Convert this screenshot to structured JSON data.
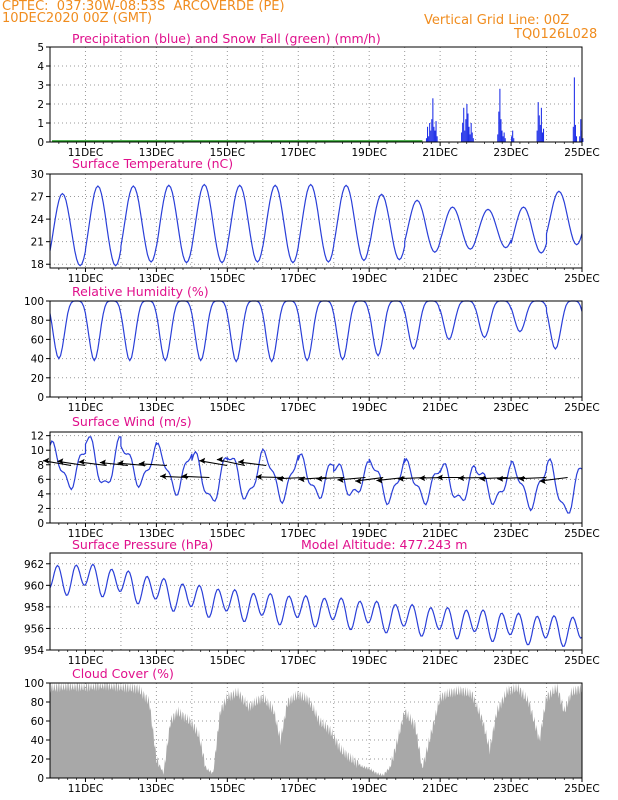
{
  "header": {
    "line1": "CPTEC:  037:30W-08:53S  ARCOVERDE (PE)",
    "line2": "10DEC2020 00Z (GMT)",
    "grid_note": "Vertical Grid Line: 00Z",
    "code": "TQ0126L028"
  },
  "colors": {
    "precip": "#1f2fe8",
    "snow": "#1a9a1a",
    "line": "#2a3fd8",
    "cloud": "#a8a8a8",
    "title": "#e0108c",
    "header": "#f08c1e"
  },
  "chart_data": [
    {
      "id": "precip",
      "type": "bar",
      "title": "Precipitation (blue) and Snow Fall (green) (mm/h)",
      "ylim": [
        0,
        5
      ],
      "yticks": [
        0,
        1,
        2,
        3,
        4,
        5
      ],
      "x_start_day": 10,
      "x_end_day": 25,
      "xticks": [
        "11DEC",
        "13DEC",
        "15DEC",
        "17DEC",
        "19DEC",
        "21DEC",
        "23DEC",
        "25DEC"
      ],
      "series": [
        {
          "values_daystart": 20.6,
          "step_days": 0.03,
          "values": [
            0.2,
            0.8,
            0.3,
            1.0,
            0.6,
            1.2,
            2.3,
            0.8,
            0.6,
            1.1,
            0.3,
            0.0,
            0.0,
            0.0,
            0.0,
            0.0,
            0.0,
            0.0,
            0.0,
            0.0,
            0.0,
            0.0,
            0.0,
            0.0,
            0.0,
            0.0,
            0.0,
            0.0,
            0.0,
            0.0,
            0.0,
            0.0,
            0.0,
            0.5,
            1.0,
            1.8,
            0.6,
            1.2,
            2.0,
            1.5,
            0.8,
            0.4,
            1.0,
            0.5,
            0.2,
            0.0,
            0.0,
            0.0,
            0.0,
            0.0,
            0.0,
            0.0,
            0.0,
            0.0,
            0.0,
            0.0,
            0.0,
            0.0,
            0.0,
            0.0,
            0.0,
            0.0,
            0.0,
            0.0,
            0.0,
            0.0,
            0.0,
            0.4,
            1.6,
            2.8,
            1.2,
            0.6,
            0.3,
            0.5,
            0.2,
            0.0,
            0.0,
            0.0,
            0.0,
            0.0,
            0.3,
            0.6,
            0.2,
            0.0,
            0.0,
            0.0,
            0.0,
            0.0,
            0.0,
            0.0,
            0.0,
            0.0,
            0.0,
            0.0,
            0.0,
            0.0,
            0.0,
            0.0,
            0.0,
            0.0,
            0.0,
            0.0,
            0.0,
            0.0,
            0.6,
            2.1,
            1.4,
            0.9,
            1.8,
            0.5,
            0.7,
            0.0,
            0.0,
            0.0,
            0.0,
            0.0,
            0.0,
            0.0,
            0.0,
            0.0,
            0.0,
            0.0,
            0.0,
            0.0,
            0.0,
            0.0,
            0.0,
            0.0,
            0.0,
            0.0,
            0.0,
            0.0,
            0.0,
            0.0,
            0.0,
            0.0,
            0.0,
            0.0,
            0.8,
            3.4,
            0.9,
            0.3,
            0.0,
            0.0,
            0.3,
            1.2,
            0.6,
            0.2
          ]
        }
      ]
    },
    {
      "id": "temp",
      "type": "line",
      "title": "Surface Temperature (nC)",
      "ylim": [
        17.5,
        30
      ],
      "yticks": [
        18,
        21,
        24,
        27,
        30
      ],
      "xticks": [
        "11DEC",
        "13DEC",
        "15DEC",
        "17DEC",
        "19DEC",
        "21DEC",
        "23DEC",
        "25DEC"
      ],
      "daily_min": [
        17.8,
        17.8,
        18.3,
        18.2,
        18.2,
        18.3,
        18.2,
        18.3,
        18.5,
        18.6,
        19.6,
        20.0,
        20.2,
        19.5,
        20.6
      ],
      "daily_max": [
        27.4,
        28.4,
        28.4,
        28.5,
        28.6,
        28.5,
        28.5,
        28.6,
        28.5,
        27.3,
        26.5,
        25.6,
        25.3,
        25.6,
        27.7
      ],
      "start_value": 21.8,
      "end_value": 21.9
    },
    {
      "id": "rh",
      "type": "line",
      "title": "Relative Humidity (%)",
      "ylim": [
        0,
        100
      ],
      "yticks": [
        0,
        20,
        40,
        60,
        80,
        100
      ],
      "xticks": [
        "11DEC",
        "13DEC",
        "15DEC",
        "17DEC",
        "19DEC",
        "21DEC",
        "23DEC",
        "25DEC"
      ],
      "daily_min": [
        40,
        38,
        38,
        38,
        38,
        37,
        37,
        38,
        39,
        43,
        50,
        60,
        62,
        68,
        50
      ],
      "daily_max": [
        100,
        100,
        100,
        100,
        100,
        100,
        100,
        100,
        100,
        100,
        100,
        100,
        100,
        100,
        100
      ]
    },
    {
      "id": "wind",
      "type": "line",
      "title": "Surface Wind (m/s)",
      "ylim": [
        0,
        12.5
      ],
      "yticks": [
        0,
        2,
        4,
        6,
        8,
        10,
        12
      ],
      "xticks": [
        "11DEC",
        "13DEC",
        "15DEC",
        "17DEC",
        "19DEC",
        "21DEC",
        "23DEC",
        "25DEC"
      ],
      "daily_max": [
        10.5,
        11.8,
        10.5,
        10.2,
        9.3,
        9.5,
        9.5,
        8.8,
        8.0,
        8.5,
        8.0,
        7.8,
        7.5,
        7.8,
        8.2
      ],
      "daily_min": [
        5.2,
        5.0,
        5.5,
        4.5,
        3.0,
        3.5,
        3.5,
        3.8,
        3.8,
        3.2,
        3.2,
        3.0,
        3.0,
        2.5,
        1.5
      ],
      "arrows": [
        {
          "day": 10.2,
          "dir": 130
        },
        {
          "day": 10.6,
          "dir": 125
        },
        {
          "day": 11.2,
          "dir": 120
        },
        {
          "day": 11.8,
          "dir": 115
        },
        {
          "day": 12.3,
          "dir": 110
        },
        {
          "day": 12.9,
          "dir": 105
        },
        {
          "day": 13.5,
          "dir": 100
        },
        {
          "day": 14.1,
          "dir": 100
        },
        {
          "day": 14.6,
          "dir": 130
        },
        {
          "day": 15.1,
          "dir": 140
        },
        {
          "day": 15.7,
          "dir": 120
        },
        {
          "day": 16.2,
          "dir": 95
        },
        {
          "day": 16.8,
          "dir": 80
        },
        {
          "day": 17.4,
          "dir": 75
        },
        {
          "day": 17.9,
          "dir": 80
        },
        {
          "day": 18.5,
          "dir": 70
        },
        {
          "day": 19.0,
          "dir": 60
        },
        {
          "day": 19.6,
          "dir": 65
        },
        {
          "day": 20.2,
          "dir": 80
        },
        {
          "day": 20.8,
          "dir": 85
        },
        {
          "day": 21.3,
          "dir": 90
        },
        {
          "day": 21.9,
          "dir": 85
        },
        {
          "day": 22.5,
          "dir": 80
        },
        {
          "day": 23.0,
          "dir": 80
        },
        {
          "day": 23.6,
          "dir": 80
        },
        {
          "day": 24.2,
          "dir": 60
        }
      ]
    },
    {
      "id": "pres",
      "type": "line",
      "title": "Surface Pressure (hPa)",
      "subtitle": "Model Altitude: 477.243 m",
      "ylim": [
        954,
        963
      ],
      "yticks": [
        954,
        956,
        958,
        960,
        962
      ],
      "xticks": [
        "11DEC",
        "13DEC",
        "15DEC",
        "17DEC",
        "19DEC",
        "21DEC",
        "23DEC",
        "25DEC"
      ],
      "trend": [
        960.5,
        960.8,
        960.2,
        959.5,
        958.8,
        958.4,
        958.0,
        957.8,
        957.6,
        957.3,
        957.0,
        956.7,
        956.5,
        956.2,
        955.9
      ],
      "amplitude": 1.6
    },
    {
      "id": "cloud",
      "type": "area",
      "title": "Cloud Cover (%)",
      "ylim": [
        0,
        100
      ],
      "yticks": [
        0,
        20,
        40,
        60,
        80,
        100
      ],
      "xticks": [
        "11DEC",
        "13DEC",
        "15DEC",
        "17DEC",
        "19DEC",
        "21DEC",
        "23DEC",
        "25DEC"
      ],
      "profile": [
        [
          10,
          95
        ],
        [
          10.5,
          97
        ],
        [
          11,
          96
        ],
        [
          11.5,
          98
        ],
        [
          12,
          96
        ],
        [
          12.5,
          94
        ],
        [
          12.8,
          80
        ],
        [
          13.0,
          20
        ],
        [
          13.2,
          5
        ],
        [
          13.4,
          60
        ],
        [
          13.6,
          70
        ],
        [
          14.0,
          58
        ],
        [
          14.2,
          45
        ],
        [
          14.4,
          10
        ],
        [
          14.6,
          5
        ],
        [
          14.8,
          70
        ],
        [
          15.0,
          85
        ],
        [
          15.3,
          90
        ],
        [
          15.6,
          75
        ],
        [
          16.0,
          85
        ],
        [
          16.3,
          72
        ],
        [
          16.5,
          40
        ],
        [
          16.7,
          80
        ],
        [
          17.0,
          88
        ],
        [
          17.3,
          82
        ],
        [
          17.6,
          60
        ],
        [
          17.9,
          50
        ],
        [
          18.2,
          30
        ],
        [
          18.5,
          20
        ],
        [
          18.8,
          12
        ],
        [
          19.0,
          10
        ],
        [
          19.2,
          5
        ],
        [
          19.4,
          3
        ],
        [
          19.6,
          12
        ],
        [
          19.8,
          40
        ],
        [
          20.0,
          70
        ],
        [
          20.3,
          55
        ],
        [
          20.5,
          10
        ],
        [
          20.7,
          40
        ],
        [
          21.0,
          85
        ],
        [
          21.3,
          90
        ],
        [
          21.6,
          92
        ],
        [
          21.9,
          88
        ],
        [
          22.2,
          60
        ],
        [
          22.4,
          30
        ],
        [
          22.6,
          70
        ],
        [
          22.9,
          92
        ],
        [
          23.2,
          95
        ],
        [
          23.5,
          80
        ],
        [
          23.8,
          40
        ],
        [
          24.0,
          85
        ],
        [
          24.3,
          95
        ],
        [
          24.5,
          70
        ],
        [
          24.7,
          90
        ],
        [
          25.0,
          95
        ]
      ]
    }
  ]
}
